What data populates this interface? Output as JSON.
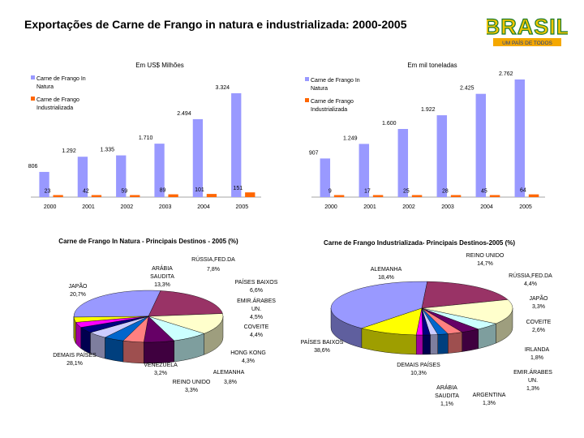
{
  "slide": {
    "title": "Exportações de Carne de Frango in natura e industrializada: 2000-2005",
    "logo_text": "BRASIL",
    "logo_tagline": "UM PAÍS DE TODOS",
    "colors": {
      "natura": "#9999ff",
      "industrial": "#ff6600"
    }
  },
  "chart_data": [
    {
      "type": "bar",
      "title": "Em US$ Milhões",
      "categories": [
        "2000",
        "2001",
        "2002",
        "2003",
        "2004",
        "2005"
      ],
      "series": [
        {
          "name": "Carne de Frango In Natura",
          "values": [
            806,
            1292,
            1335,
            1710,
            2494,
            3324
          ],
          "labels": [
            "806",
            "1.292",
            "1.335",
            "1.710",
            "2.494",
            "3.324"
          ]
        },
        {
          "name": "Carne de Frango Industrializada",
          "values": [
            23,
            42,
            59,
            89,
            101,
            151
          ],
          "labels": [
            "23",
            "42",
            "59",
            "89",
            "101",
            "151"
          ]
        }
      ],
      "ylim": [
        0,
        3400
      ]
    },
    {
      "type": "bar",
      "title": "Em mil toneladas",
      "categories": [
        "2000",
        "2001",
        "2002",
        "2003",
        "2004",
        "2005"
      ],
      "series": [
        {
          "name": "Carne de Frango In Natura",
          "values": [
            907,
            1249,
            1600,
            1922,
            2425,
            2762
          ],
          "labels": [
            "907",
            "1.249",
            "1.600",
            "1.922",
            "2.425",
            "2.762"
          ]
        },
        {
          "name": "Carne de Frango Industrializada",
          "values": [
            9,
            17,
            25,
            28,
            45,
            64
          ],
          "labels": [
            "9",
            "17",
            "25",
            "28",
            "45",
            "64"
          ]
        }
      ],
      "ylim": [
        0,
        2800
      ]
    },
    {
      "type": "pie",
      "title": "Carne de Frango In Natura - Principais Destinos - 2005 (%)",
      "slices": [
        {
          "name": "DEMAIS PAÍSES",
          "value": 28.1,
          "label": "28,1%",
          "color": "#9999ff"
        },
        {
          "name": "JAPÃO",
          "value": 20.7,
          "label": "20,7%",
          "color": "#993366"
        },
        {
          "name": "ARÁBIA SAUDITA",
          "value": 13.3,
          "label": "13,3%",
          "color": "#ffffcc"
        },
        {
          "name": "RÚSSIA,FED.DA",
          "value": 7.8,
          "label": "7,8%",
          "color": "#ccffff"
        },
        {
          "name": "PAÍSES BAIXOS",
          "value": 6.6,
          "label": "6,6%",
          "color": "#660066"
        },
        {
          "name": "EMIR.ÁRABES UN.",
          "value": 4.5,
          "label": "4,5%",
          "color": "#ff8080"
        },
        {
          "name": "COVEITE",
          "value": 4.4,
          "label": "4,4%",
          "color": "#0066cc"
        },
        {
          "name": "HONG KONG",
          "value": 4.3,
          "label": "4,3%",
          "color": "#ccccff"
        },
        {
          "name": "ALEMANHA",
          "value": 3.8,
          "label": "3,8%",
          "color": "#000080"
        },
        {
          "name": "REINO UNIDO",
          "value": 3.3,
          "label": "3,3%",
          "color": "#ff00ff"
        },
        {
          "name": "VENEZUELA",
          "value": 3.2,
          "label": "3,2%",
          "color": "#ffff00"
        }
      ]
    },
    {
      "type": "pie",
      "title": "Carne de Frango Industrializada- Principais Destinos-2005 (%)",
      "slices": [
        {
          "name": "PAÍSES BAIXOS",
          "value": 38.6,
          "label": "38,6%",
          "color": "#9999ff"
        },
        {
          "name": "ALEMANHA",
          "value": 18.4,
          "label": "18,4%",
          "color": "#993366"
        },
        {
          "name": "REINO UNIDO",
          "value": 14.7,
          "label": "14,7%",
          "color": "#ffffcc"
        },
        {
          "name": "RÚSSIA,FED.DA",
          "value": 4.4,
          "label": "4,4%",
          "color": "#ccffff"
        },
        {
          "name": "JAPÃO",
          "value": 3.3,
          "label": "3,3%",
          "color": "#660066"
        },
        {
          "name": "COVEITE",
          "value": 2.6,
          "label": "2,6%",
          "color": "#ff8080"
        },
        {
          "name": "IRLANDA",
          "value": 1.8,
          "label": "1,8%",
          "color": "#0066cc"
        },
        {
          "name": "EMIR.ÁRABES UN.",
          "value": 1.3,
          "label": "1,3%",
          "color": "#ccccff"
        },
        {
          "name": "ARGENTINA",
          "value": 1.3,
          "label": "1,3%",
          "color": "#000080"
        },
        {
          "name": "ARÁBIA SAUDITA",
          "value": 1.1,
          "label": "1,1%",
          "color": "#ff00ff"
        },
        {
          "name": "DEMAIS PAÍSES",
          "value": 10.3,
          "label": "10,3%",
          "color": "#ffff00"
        }
      ]
    }
  ]
}
